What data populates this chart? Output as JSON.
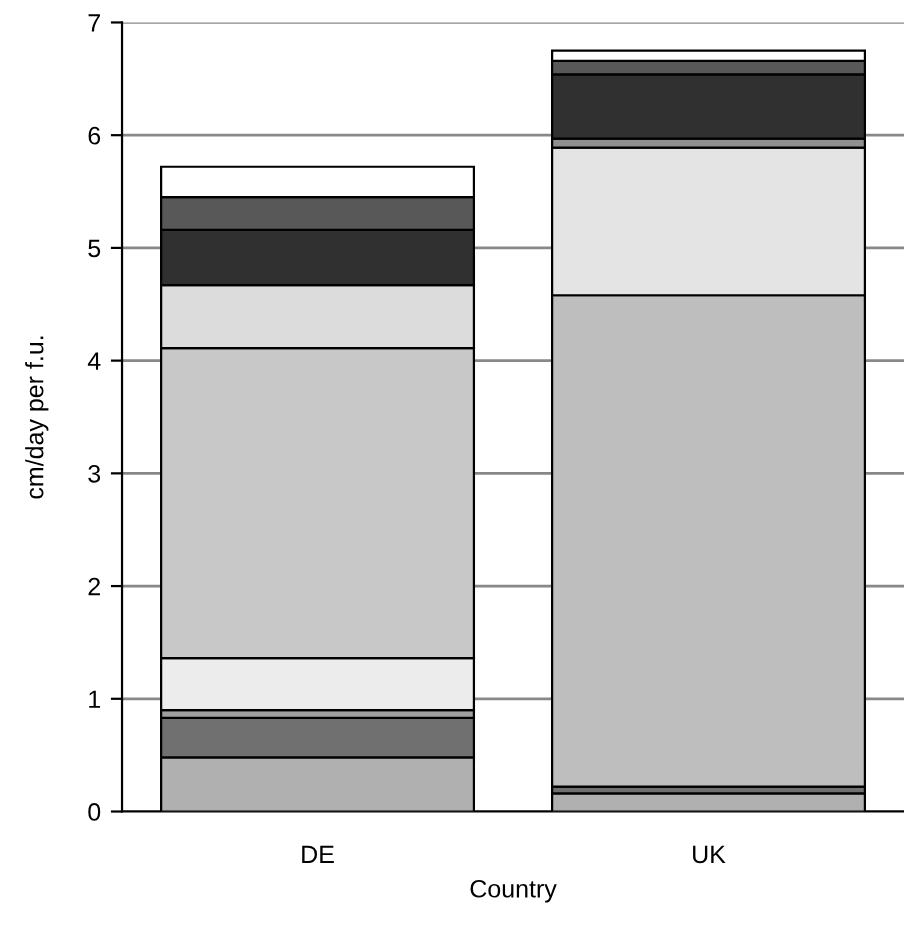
{
  "chart_data": {
    "type": "bar",
    "stacked": true,
    "xlabel": "Country",
    "ylabel": "cm/day per f.u.",
    "categories": [
      "DE",
      "UK"
    ],
    "series": [
      {
        "color": "#b0b0b0",
        "values": [
          0.48,
          0.16
        ]
      },
      {
        "color": "#707070",
        "values": [
          0.35,
          0.06
        ]
      },
      {
        "color": "#a0a0a0",
        "values": [
          0.07,
          null
        ]
      },
      {
        "color": "#ececec",
        "values": [
          0.46,
          null
        ]
      },
      {
        "color": "#c8c8c8",
        "values": [
          2.75,
          null
        ]
      },
      {
        "color": "#dcdcdc",
        "values": [
          0.56,
          null
        ]
      },
      {
        "color": "#bebebe",
        "values": [
          null,
          4.36
        ]
      },
      {
        "color": "#e4e4e4",
        "values": [
          null,
          1.31
        ]
      },
      {
        "color": "#909090",
        "values": [
          null,
          0.08
        ]
      },
      {
        "color": "#303030",
        "values": [
          0.49,
          0.57
        ]
      },
      {
        "color": "#585858",
        "values": [
          0.29,
          0.12
        ]
      },
      {
        "color": "#ffffff",
        "values": [
          0.27,
          0.09
        ]
      }
    ],
    "ylim": [
      0,
      7
    ],
    "yticks": [
      0,
      1,
      2,
      3,
      4,
      5,
      6,
      7
    ],
    "grid": "y",
    "legend": false
  }
}
